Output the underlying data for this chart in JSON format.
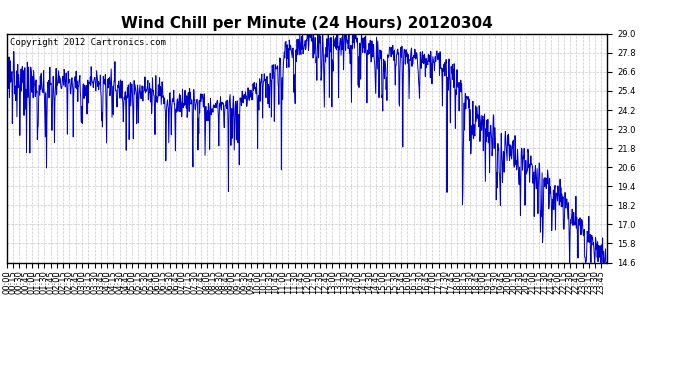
{
  "title": "Wind Chill per Minute (24 Hours) 20120304",
  "copyright": "Copyright 2012 Cartronics.com",
  "line_color": "#0000CC",
  "background_color": "#ffffff",
  "grid_color": "#bbbbbb",
  "ylim": [
    14.6,
    29.0
  ],
  "yticks": [
    14.6,
    15.8,
    17.0,
    18.2,
    19.4,
    20.6,
    21.8,
    23.0,
    24.2,
    25.4,
    26.6,
    27.8,
    29.0
  ],
  "total_minutes": 1440,
  "figsize": [
    6.9,
    3.75
  ],
  "dpi": 100,
  "title_fontsize": 11,
  "copyright_fontsize": 6.5,
  "tick_fontsize": 6,
  "line_width": 0.7
}
